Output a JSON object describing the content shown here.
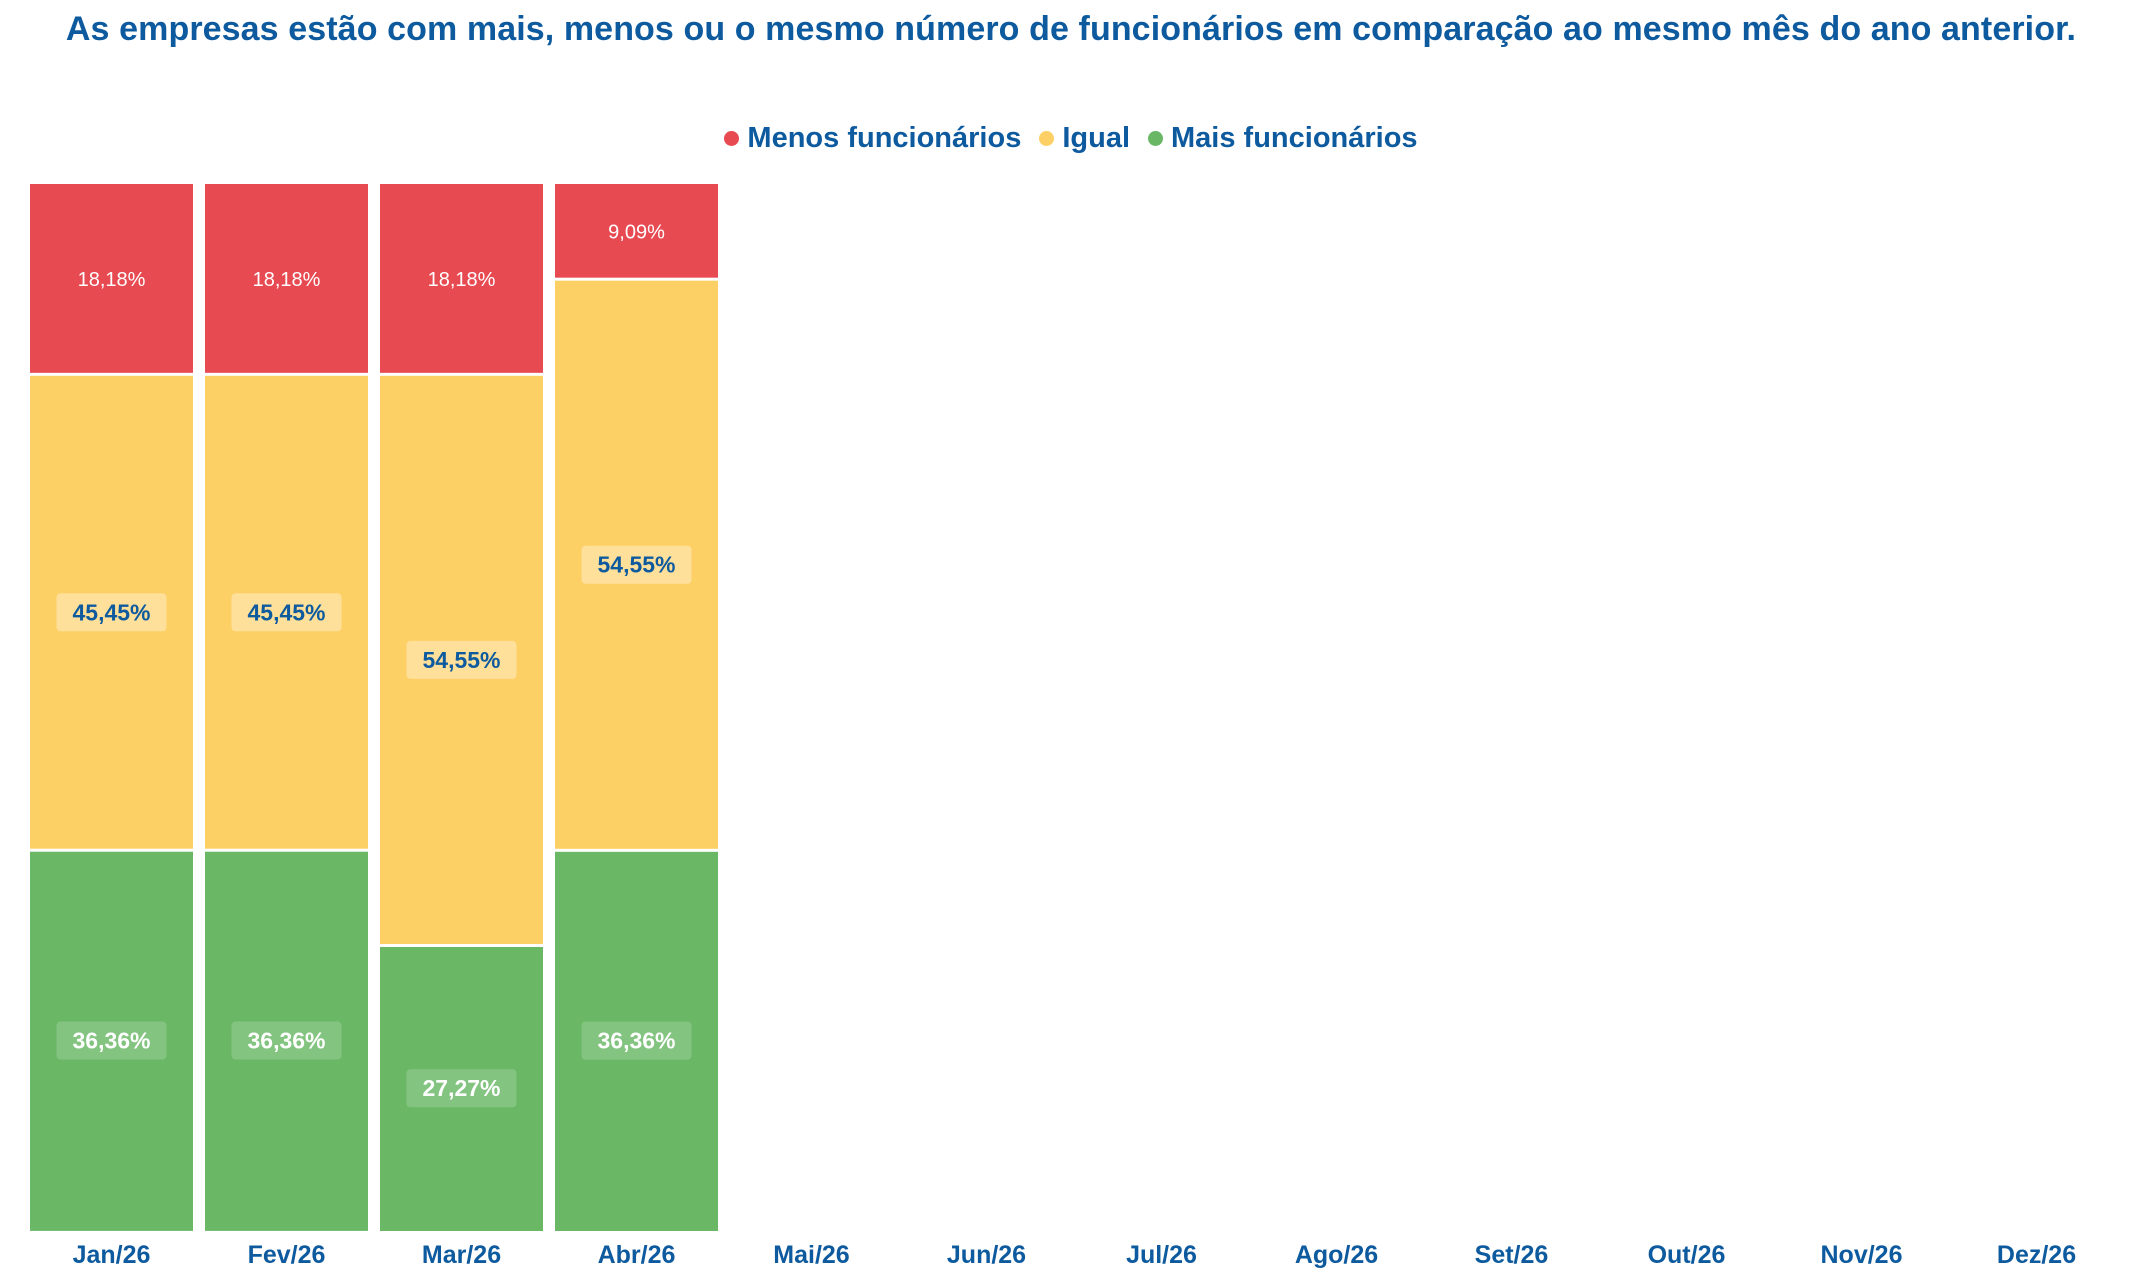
{
  "chart_data": {
    "type": "bar",
    "stacked": true,
    "title": "As empresas estão com mais, menos ou o mesmo número de funcionários em comparação ao mesmo mês do ano anterior.",
    "legend_position": "top-center",
    "grid": false,
    "ylim": [
      0,
      100
    ],
    "categories": [
      "Jan/26",
      "Fev/26",
      "Mar/26",
      "Abr/26",
      "Mai/26",
      "Jun/26",
      "Jul/26",
      "Ago/26",
      "Set/26",
      "Out/26",
      "Nov/26",
      "Dez/26"
    ],
    "series": [
      {
        "name": "Menos funcionários",
        "color": "#e84a52",
        "values": [
          18.18,
          18.18,
          18.18,
          9.09,
          null,
          null,
          null,
          null,
          null,
          null,
          null,
          null
        ],
        "labels": [
          "18,18%",
          "18,18%",
          "18,18%",
          "9,09%",
          "",
          "",
          "",
          "",
          "",
          "",
          "",
          ""
        ]
      },
      {
        "name": "Igual",
        "color": "#fdd065",
        "values": [
          45.45,
          45.45,
          54.55,
          54.55,
          null,
          null,
          null,
          null,
          null,
          null,
          null,
          null
        ],
        "labels": [
          "45,45%",
          "45,45%",
          "54,55%",
          "54,55%",
          "",
          "",
          "",
          "",
          "",
          "",
          "",
          ""
        ]
      },
      {
        "name": "Mais funcionários",
        "color": "#6ab866",
        "values": [
          36.36,
          36.36,
          27.27,
          36.36,
          null,
          null,
          null,
          null,
          null,
          null,
          null,
          null
        ],
        "labels": [
          "36,36%",
          "36,36%",
          "27,27%",
          "36,36%",
          "",
          "",
          "",
          "",
          "",
          "",
          "",
          ""
        ]
      }
    ]
  }
}
